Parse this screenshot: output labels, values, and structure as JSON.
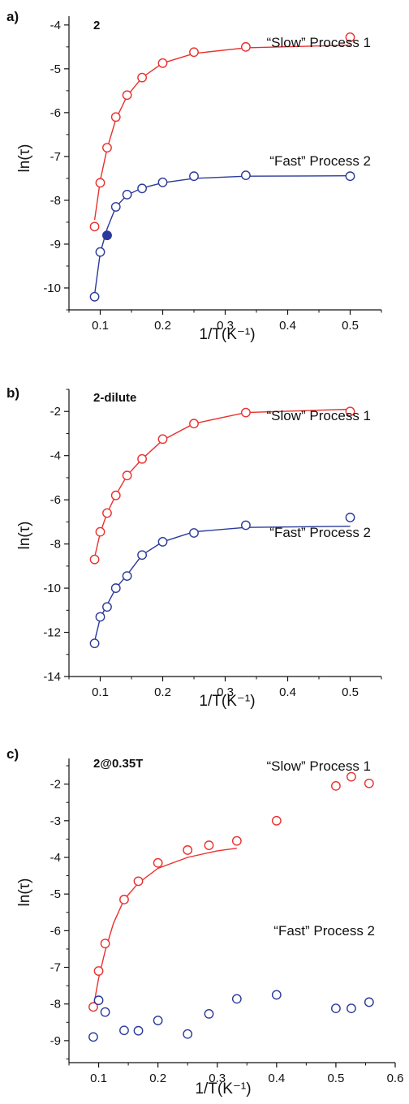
{
  "figure": {
    "colors": {
      "slow": "#e8312f",
      "fast": "#2b3a9a",
      "axis": "#111111"
    }
  },
  "chart_data": [
    {
      "type": "scatter",
      "panel_letter": "a)",
      "panel_name": "2",
      "xlabel": "1/T(K⁻¹)",
      "ylabel": "ln(τ)",
      "xlim": [
        0.05,
        0.55
      ],
      "ylim": [
        -10.5,
        -3.8
      ],
      "x_ticks": [
        0.1,
        0.2,
        0.3,
        0.4,
        0.5
      ],
      "x_tick_labels": [
        "0.1",
        "0.2",
        "0.3",
        "0.4",
        "0.5"
      ],
      "y_ticks": [
        -10,
        -9,
        -8,
        -7,
        -6,
        -5,
        -4
      ],
      "y_tick_labels": [
        "-10",
        "-9",
        "-8",
        "-7",
        "-6",
        "-5",
        "-4"
      ],
      "series": [
        {
          "name": "“Slow” Process 1",
          "color": "#e8312f",
          "x": [
            0.091,
            0.1,
            0.111,
            0.125,
            0.143,
            0.167,
            0.2,
            0.25,
            0.333,
            0.5
          ],
          "y": [
            -8.6,
            -7.6,
            -6.8,
            -6.1,
            -5.6,
            -5.2,
            -4.87,
            -4.62,
            -4.5,
            -4.28
          ],
          "fit_x": [
            0.091,
            0.1,
            0.111,
            0.125,
            0.143,
            0.167,
            0.2,
            0.25,
            0.333,
            0.5
          ],
          "fit_y": [
            -8.45,
            -7.55,
            -6.82,
            -6.15,
            -5.62,
            -5.2,
            -4.87,
            -4.65,
            -4.52,
            -4.46
          ]
        },
        {
          "name": "“Fast” Process 2",
          "color": "#2b3a9a",
          "x": [
            0.091,
            0.1,
            0.111,
            0.125,
            0.143,
            0.167,
            0.2,
            0.25,
            0.333,
            0.5
          ],
          "y": [
            -10.2,
            -9.18,
            -8.8,
            -8.15,
            -7.87,
            -7.73,
            -7.59,
            -7.45,
            -7.43,
            -7.45
          ],
          "filled_point": [
            0.111,
            -8.8
          ],
          "fit_x": [
            0.091,
            0.1,
            0.111,
            0.125,
            0.143,
            0.167,
            0.2,
            0.25,
            0.333,
            0.5
          ],
          "fit_y": [
            -10.15,
            -9.2,
            -8.65,
            -8.15,
            -7.88,
            -7.72,
            -7.6,
            -7.5,
            -7.45,
            -7.44
          ]
        }
      ]
    },
    {
      "type": "scatter",
      "panel_letter": "b)",
      "panel_name": "2-dilute",
      "xlabel": "1/T(K⁻¹)",
      "ylabel": "ln(τ)",
      "xlim": [
        0.05,
        0.55
      ],
      "ylim": [
        -14,
        -1
      ],
      "x_ticks": [
        0.1,
        0.2,
        0.3,
        0.4,
        0.5
      ],
      "x_tick_labels": [
        "0.1",
        "0.2",
        "0.3",
        "0.4",
        "0.5"
      ],
      "y_ticks": [
        -14,
        -12,
        -10,
        -8,
        -6,
        -4,
        -2
      ],
      "y_tick_labels": [
        "-14",
        "-12",
        "-10",
        "-8",
        "-6",
        "-4",
        "-2"
      ],
      "series": [
        {
          "name": "“Slow” Process 1",
          "color": "#e8312f",
          "x": [
            0.091,
            0.1,
            0.111,
            0.125,
            0.143,
            0.167,
            0.2,
            0.25,
            0.333,
            0.5
          ],
          "y": [
            -8.7,
            -7.45,
            -6.6,
            -5.8,
            -4.9,
            -4.15,
            -3.25,
            -2.55,
            -2.05,
            -2.0
          ],
          "fit_x": [
            0.091,
            0.1,
            0.111,
            0.125,
            0.143,
            0.167,
            0.2,
            0.25,
            0.333,
            0.5
          ],
          "fit_y": [
            -8.6,
            -7.5,
            -6.6,
            -5.78,
            -4.9,
            -4.15,
            -3.3,
            -2.55,
            -2.05,
            -1.9
          ]
        },
        {
          "name": "“Fast” Process 2",
          "color": "#2b3a9a",
          "x": [
            0.091,
            0.1,
            0.111,
            0.125,
            0.143,
            0.167,
            0.2,
            0.25,
            0.333,
            0.5
          ],
          "y": [
            -12.5,
            -11.3,
            -10.85,
            -10.0,
            -9.45,
            -8.5,
            -7.9,
            -7.5,
            -7.15,
            -6.8
          ],
          "fit_x": [
            0.091,
            0.1,
            0.111,
            0.125,
            0.143,
            0.167,
            0.2,
            0.25,
            0.333,
            0.5
          ],
          "fit_y": [
            -12.4,
            -11.35,
            -10.75,
            -10.0,
            -9.4,
            -8.5,
            -7.9,
            -7.45,
            -7.25,
            -7.2
          ]
        }
      ]
    },
    {
      "type": "scatter",
      "panel_letter": "c)",
      "panel_name": "2@0.35T",
      "xlabel": "1/T(K⁻¹)",
      "ylabel": "ln(τ)",
      "xlim": [
        0.05,
        0.6
      ],
      "ylim": [
        -9.6,
        -1.3
      ],
      "x_ticks": [
        0.1,
        0.2,
        0.3,
        0.4,
        0.5,
        0.6
      ],
      "x_tick_labels": [
        "0.1",
        "0.2",
        "0.3",
        "0.4",
        "0.5",
        "0.6"
      ],
      "y_ticks": [
        -9,
        -8,
        -7,
        -6,
        -5,
        -4,
        -3,
        -2
      ],
      "y_tick_labels": [
        "-9",
        "-8",
        "-7",
        "-6",
        "-5",
        "-4",
        "-3",
        "-2"
      ],
      "series": [
        {
          "name": "“Slow” Process 1",
          "color": "#e8312f",
          "x": [
            0.091,
            0.1,
            0.111,
            0.143,
            0.167,
            0.2,
            0.25,
            0.286,
            0.333,
            0.4,
            0.5,
            0.526,
            0.556
          ],
          "y": [
            -8.08,
            -7.1,
            -6.35,
            -5.15,
            -4.65,
            -4.15,
            -3.8,
            -3.67,
            -3.55,
            -3.0,
            -2.05,
            -1.8,
            -1.98
          ],
          "fit_x": [
            0.091,
            0.1,
            0.111,
            0.125,
            0.143,
            0.167,
            0.2,
            0.25,
            0.3,
            0.333
          ],
          "fit_y": [
            -8.1,
            -7.3,
            -6.55,
            -5.8,
            -5.15,
            -4.7,
            -4.3,
            -4.0,
            -3.82,
            -3.75
          ]
        },
        {
          "name": "“Fast” Process 2",
          "color": "#2b3a9a",
          "x": [
            0.091,
            0.1,
            0.111,
            0.143,
            0.167,
            0.2,
            0.25,
            0.286,
            0.333,
            0.4,
            0.5,
            0.526,
            0.556
          ],
          "y": [
            -8.9,
            -7.9,
            -8.22,
            -8.72,
            -8.73,
            -8.45,
            -8.82,
            -8.27,
            -7.86,
            -7.75,
            -8.12,
            -8.12,
            -7.95
          ]
        }
      ]
    }
  ]
}
